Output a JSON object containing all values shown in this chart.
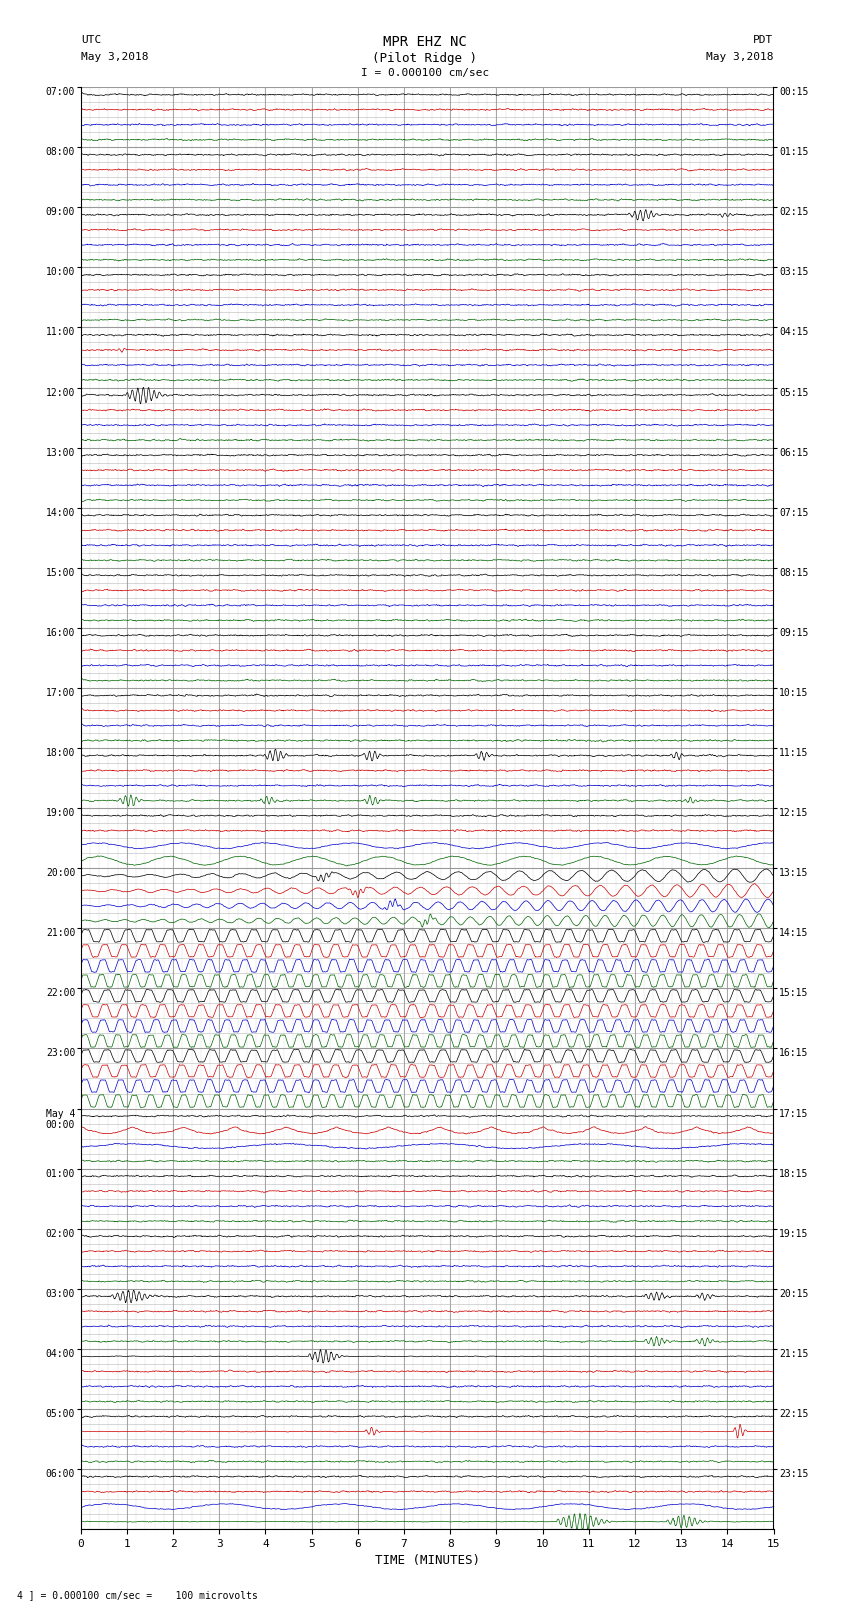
{
  "title_line1": "MPR EHZ NC",
  "title_line2": "(Pilot Ridge )",
  "scale_label": "I = 0.000100 cm/sec",
  "left_header1": "UTC",
  "left_header2": "May 3,2018",
  "right_header1": "PDT",
  "right_header2": "May 3,2018",
  "bottom_note": "4 ] = 0.000100 cm/sec =    100 microvolts",
  "xlabel": "TIME (MINUTES)",
  "utc_times": [
    "07:00",
    "08:00",
    "09:00",
    "10:00",
    "11:00",
    "12:00",
    "13:00",
    "14:00",
    "15:00",
    "16:00",
    "17:00",
    "18:00",
    "19:00",
    "20:00",
    "21:00",
    "22:00",
    "23:00",
    "May 4\n00:00",
    "01:00",
    "02:00",
    "03:00",
    "04:00",
    "05:00",
    "06:00"
  ],
  "pdt_times": [
    "00:15",
    "01:15",
    "02:15",
    "03:15",
    "04:15",
    "05:15",
    "06:15",
    "07:15",
    "08:15",
    "09:15",
    "10:15",
    "11:15",
    "12:15",
    "13:15",
    "14:15",
    "15:15",
    "16:15",
    "17:15",
    "18:15",
    "19:15",
    "20:15",
    "21:15",
    "22:15",
    "23:15"
  ],
  "n_hours": 24,
  "n_traces_per_hour": 4,
  "n_minutes": 15,
  "bg_color": "#ffffff",
  "grid_color": "#999999",
  "trace_colors": [
    "#000000",
    "#cc0000",
    "#0000cc",
    "#006600"
  ],
  "figsize": [
    8.5,
    16.13
  ],
  "dpi": 100
}
